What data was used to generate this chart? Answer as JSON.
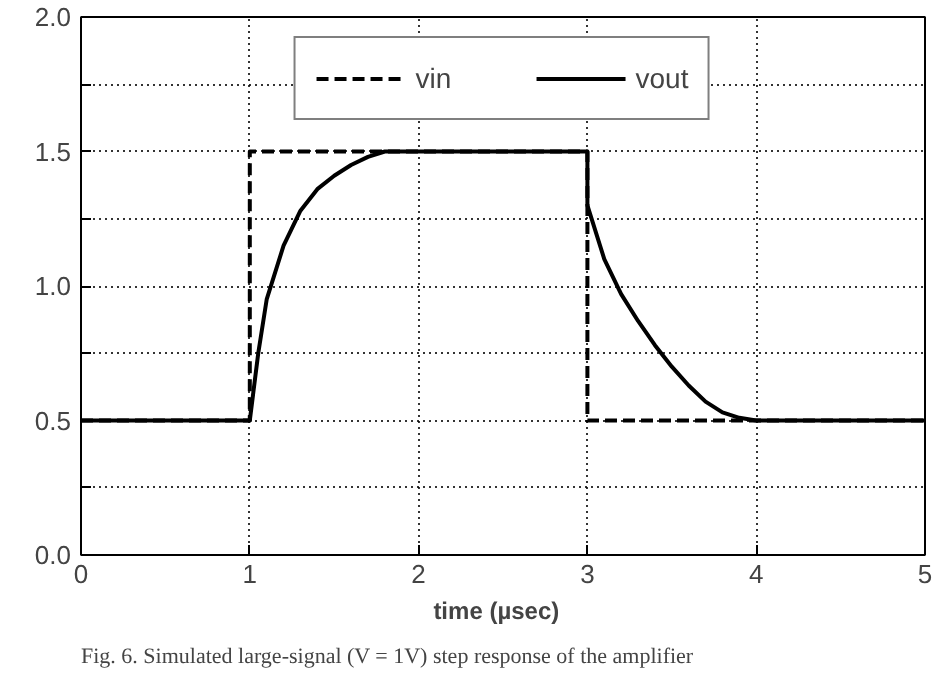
{
  "chart_data": {
    "type": "line",
    "xlabel": "time   (µsec)",
    "annotations": [
      "Fig. 6. Simulated large-signal (V = 1V) step response of the amplifier"
    ],
    "xlim": [
      0,
      5
    ],
    "xticks": [
      0,
      1,
      2,
      3,
      4,
      5
    ],
    "ylim": [
      0,
      2
    ],
    "yticks": [
      "0.0",
      {
        "value": 0.25,
        "label": null
      },
      0.5,
      {
        "value": 0.75,
        "label": null
      },
      "1.0",
      {
        "value": 1.25,
        "label": null
      },
      1.5,
      {
        "value": 1.75,
        "label": null
      },
      "2.0"
    ],
    "grid": true,
    "legend": "top",
    "marker": "none",
    "series": [
      {
        "name": "vin",
        "color": "#000000",
        "line_style": "dashed",
        "x": [
          0,
          1,
          1,
          3,
          3,
          5
        ],
        "values": [
          0.5,
          0.5,
          1.5,
          1.5,
          0.5,
          0.5
        ]
      },
      {
        "name": "vout",
        "color": "#000000",
        "line_style": "solid",
        "x": [
          0,
          1.0,
          1.05,
          1.1,
          1.2,
          1.3,
          1.4,
          1.5,
          1.6,
          1.7,
          1.8,
          3.0,
          3.0,
          3.1,
          3.2,
          3.3,
          3.4,
          3.5,
          3.6,
          3.7,
          3.8,
          3.9,
          4.0,
          5
        ],
        "values": [
          0.5,
          0.5,
          0.75,
          0.95,
          1.15,
          1.28,
          1.36,
          1.41,
          1.45,
          1.48,
          1.5,
          1.5,
          1.3,
          1.1,
          0.97,
          0.87,
          0.78,
          0.7,
          0.63,
          0.57,
          0.53,
          0.51,
          0.5,
          0.5
        ]
      }
    ]
  }
}
